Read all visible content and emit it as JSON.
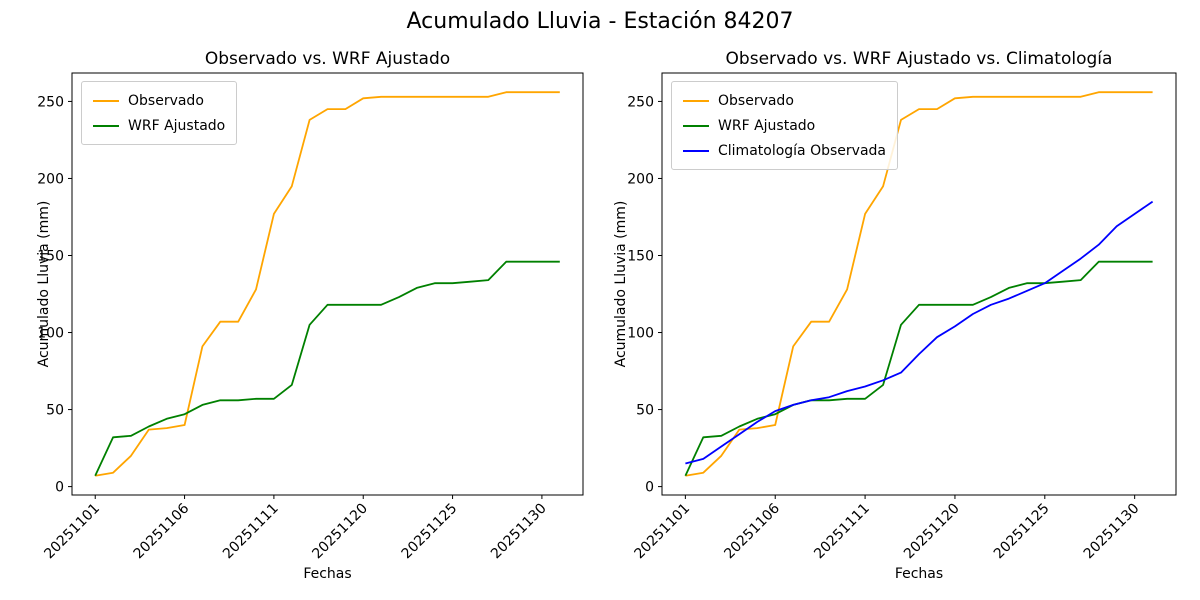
{
  "figure": {
    "title": "Acumulado Lluvia - Estación 84207"
  },
  "chart_data": [
    {
      "type": "line",
      "title": "Observado vs. WRF Ajustado",
      "xlabel": "Fechas",
      "ylabel": "Acumulado Lluvia (mm)",
      "x_tick_labels": [
        "20251101",
        "20251106",
        "20251111",
        "20251120",
        "20251125",
        "20251130"
      ],
      "x_tick_indices": [
        0,
        5,
        10,
        15,
        20,
        25
      ],
      "y_ticks": [
        0,
        50,
        100,
        150,
        200,
        250
      ],
      "ylim": [
        0,
        269
      ],
      "grid": false,
      "legend_position": "upper left",
      "series": [
        {
          "name": "Observado",
          "color": "#FFA500",
          "values": [
            7,
            9,
            20,
            37,
            38,
            40,
            91,
            107,
            107,
            128,
            177,
            195,
            238,
            245,
            245,
            252,
            253,
            253,
            253,
            253,
            253,
            253,
            253,
            256,
            256,
            256,
            256
          ]
        },
        {
          "name": "WRF Ajustado",
          "color": "#008000",
          "values": [
            7,
            32,
            33,
            39,
            44,
            47,
            53,
            56,
            56,
            57,
            57,
            66,
            105,
            118,
            118,
            118,
            118,
            123,
            129,
            132,
            132,
            133,
            134,
            146,
            146,
            146,
            146
          ]
        }
      ]
    },
    {
      "type": "line",
      "title": "Observado vs. WRF Ajustado vs. Climatología",
      "xlabel": "Fechas",
      "ylabel": "Acumulado Lluvia (mm)",
      "x_tick_labels": [
        "20251101",
        "20251106",
        "20251111",
        "20251120",
        "20251125",
        "20251130"
      ],
      "x_tick_indices": [
        0,
        5,
        10,
        15,
        20,
        25
      ],
      "y_ticks": [
        0,
        50,
        100,
        150,
        200,
        250
      ],
      "ylim": [
        0,
        269
      ],
      "grid": false,
      "legend_position": "upper left",
      "series": [
        {
          "name": "Observado",
          "color": "#FFA500",
          "values": [
            7,
            9,
            20,
            37,
            38,
            40,
            91,
            107,
            107,
            128,
            177,
            195,
            238,
            245,
            245,
            252,
            253,
            253,
            253,
            253,
            253,
            253,
            253,
            256,
            256,
            256,
            256
          ]
        },
        {
          "name": "WRF Ajustado",
          "color": "#008000",
          "values": [
            7,
            32,
            33,
            39,
            44,
            47,
            53,
            56,
            56,
            57,
            57,
            66,
            105,
            118,
            118,
            118,
            118,
            123,
            129,
            132,
            132,
            133,
            134,
            146,
            146,
            146,
            146
          ]
        },
        {
          "name": "Climatología Observada",
          "color": "#0000FF",
          "values": [
            15,
            18,
            26,
            34,
            42,
            49,
            53,
            56,
            58,
            62,
            65,
            69,
            74,
            86,
            97,
            104,
            112,
            118,
            122,
            127,
            132,
            140,
            148,
            157,
            169,
            177,
            185
          ]
        }
      ]
    }
  ]
}
